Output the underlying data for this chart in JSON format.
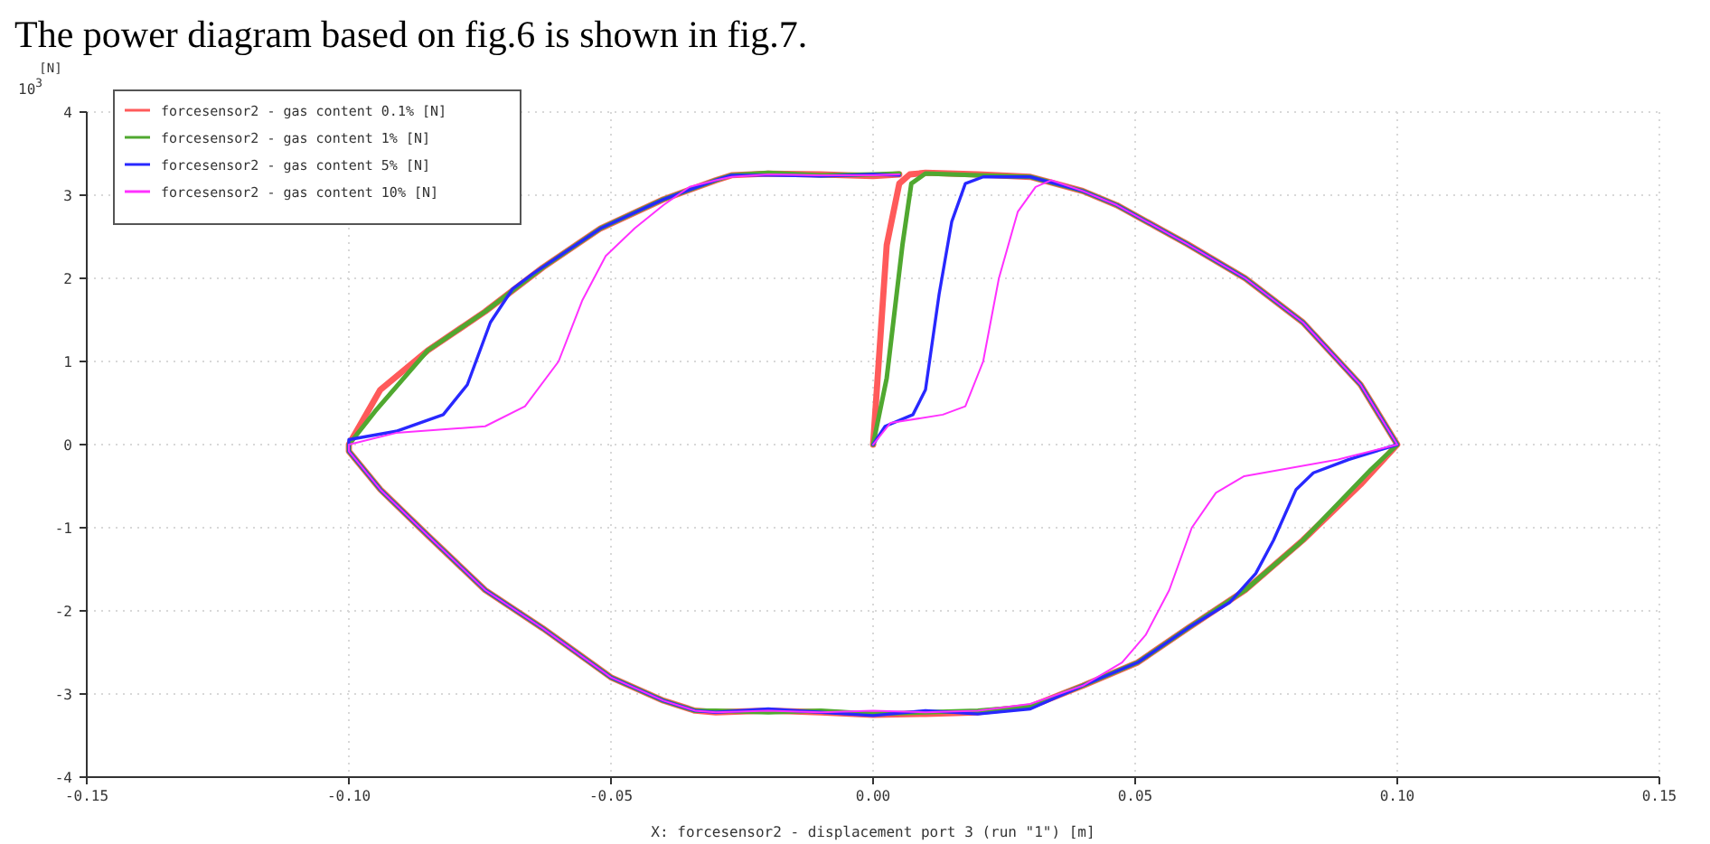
{
  "chart_data": {
    "type": "line",
    "title": "The power diagram based on fig.6 is shown in fig.7.",
    "xlabel": "X: forcesensor2 - displacement port 3 (run \"1\") [m]",
    "ylabel": "[N]",
    "annotations": [
      "10$^{3}$"
    ],
    "xlim": [
      -0.15,
      0.15
    ],
    "xticks": [
      {
        "value": -0.15,
        "label": "-0.15"
      },
      {
        "value": -0.1,
        "label": "-0.10"
      },
      {
        "value": -0.05,
        "label": "-0.05"
      },
      {
        "value": 0,
        "label": "0.00"
      },
      {
        "value": 0.05,
        "label": "0.05"
      },
      {
        "value": 0.1,
        "label": "0.10"
      },
      {
        "value": 0.15,
        "label": "0.15"
      }
    ],
    "ylim": [
      -4,
      4
    ],
    "yticks": [
      -4,
      -3,
      -2,
      -1,
      0,
      1,
      2,
      3,
      4
    ],
    "grid": true,
    "legend": "top left",
    "line_style": "solid",
    "marker": "none",
    "series": [
      {
        "name": "forcesensor2 - gas content 0.1% [N]",
        "color": "#ff5a5a",
        "x": [
          0,
          0.0026,
          0.005,
          0.007,
          0.01,
          0.02,
          0.03,
          0.04,
          0.0465,
          0.06,
          0.071,
          0.082,
          0.093,
          0.1,
          0.093,
          0.082,
          0.071,
          0.06,
          0.0505,
          0.04,
          0.03,
          0.02,
          0.01,
          0,
          -0.01,
          -0.02,
          -0.03,
          -0.034,
          -0.04,
          -0.05,
          -0.063,
          -0.074,
          -0.085,
          -0.094,
          -0.1,
          -0.1,
          -0.094,
          -0.085,
          -0.074,
          -0.063,
          -0.052,
          -0.04,
          -0.03,
          -0.027,
          -0.02,
          -0.01,
          0,
          0.005
        ],
        "values": [
          0,
          2.4,
          3.14,
          3.25,
          3.27,
          3.25,
          3.22,
          3.05,
          2.88,
          2.41,
          2.0,
          1.47,
          0.72,
          0,
          -0.48,
          -1.15,
          -1.75,
          -2.21,
          -2.62,
          -2.9,
          -3.15,
          -3.22,
          -3.24,
          -3.25,
          -3.22,
          -3.2,
          -3.22,
          -3.2,
          -3.08,
          -2.8,
          -2.21,
          -1.75,
          -1.09,
          -0.54,
          -0.08,
          0,
          0.66,
          1.13,
          1.6,
          2.13,
          2.6,
          2.95,
          3.18,
          3.24,
          3.26,
          3.25,
          3.23,
          3.25
        ]
      },
      {
        "name": "forcesensor2 - gas content 1% [N]",
        "color": "#50a830",
        "x": [
          0,
          0.0026,
          0.0056,
          0.0073,
          0.01,
          0.02,
          0.03,
          0.04,
          0.0465,
          0.06,
          0.071,
          0.082,
          0.093,
          0.1,
          0.095,
          0.082,
          0.071,
          0.06,
          0.0505,
          0.04,
          0.03,
          0.02,
          0.01,
          0,
          -0.01,
          -0.02,
          -0.03,
          -0.034,
          -0.04,
          -0.05,
          -0.063,
          -0.074,
          -0.085,
          -0.094,
          -0.1,
          -0.1,
          -0.095,
          -0.085,
          -0.074,
          -0.063,
          -0.052,
          -0.04,
          -0.03,
          -0.027,
          -0.02,
          -0.01,
          0,
          0.005
        ],
        "values": [
          0,
          0.8,
          2.4,
          3.14,
          3.26,
          3.24,
          3.22,
          3.05,
          2.88,
          2.41,
          2.0,
          1.47,
          0.72,
          0,
          -0.3,
          -1.15,
          -1.75,
          -2.21,
          -2.62,
          -2.9,
          -3.15,
          -3.2,
          -3.22,
          -3.24,
          -3.2,
          -3.22,
          -3.2,
          -3.2,
          -3.08,
          -2.8,
          -2.21,
          -1.75,
          -1.09,
          -0.54,
          -0.08,
          0,
          0.4,
          1.13,
          1.6,
          2.13,
          2.6,
          2.95,
          3.18,
          3.24,
          3.27,
          3.24,
          3.25,
          3.26
        ]
      },
      {
        "name": "forcesensor2 - gas content 5% [N]",
        "color": "#2828ff",
        "x": [
          0,
          0.0023,
          0.0076,
          0.01,
          0.0126,
          0.015,
          0.0176,
          0.021,
          0.03,
          0.04,
          0.0465,
          0.06,
          0.071,
          0.082,
          0.093,
          0.1,
          0.0907,
          0.084,
          0.0807,
          0.0764,
          0.073,
          0.068,
          0.06,
          0.0505,
          0.04,
          0.03,
          0.02,
          0.01,
          0,
          -0.01,
          -0.02,
          -0.03,
          -0.034,
          -0.04,
          -0.05,
          -0.063,
          -0.074,
          -0.085,
          -0.094,
          -0.1,
          -0.1,
          -0.091,
          -0.082,
          -0.0774,
          -0.073,
          -0.0688,
          -0.065,
          -0.052,
          -0.04,
          -0.03,
          -0.027,
          -0.02,
          -0.01,
          0,
          0.005
        ],
        "values": [
          0,
          0.22,
          0.36,
          0.66,
          1.81,
          2.68,
          3.14,
          3.22,
          3.22,
          3.05,
          2.88,
          2.41,
          2.0,
          1.47,
          0.72,
          0,
          -0.18,
          -0.34,
          -0.54,
          -1.15,
          -1.55,
          -1.9,
          -2.21,
          -2.62,
          -2.9,
          -3.18,
          -3.24,
          -3.2,
          -3.26,
          -3.22,
          -3.18,
          -3.22,
          -3.2,
          -3.08,
          -2.8,
          -2.21,
          -1.75,
          -1.09,
          -0.54,
          -0.08,
          0.06,
          0.16,
          0.36,
          0.72,
          1.47,
          1.87,
          2.05,
          2.6,
          2.95,
          3.18,
          3.24,
          3.24,
          3.23,
          3.25,
          3.24
        ]
      },
      {
        "name": "forcesensor2 - gas content 10% [N]",
        "color": "#ff30ff",
        "x": [
          0,
          0.0033,
          0.0133,
          0.0176,
          0.021,
          0.024,
          0.0276,
          0.031,
          0.034,
          0.04,
          0.0465,
          0.06,
          0.071,
          0.082,
          0.093,
          0.1,
          0.0887,
          0.0708,
          0.0654,
          0.0608,
          0.0565,
          0.052,
          0.0475,
          0.04,
          0.03,
          0.02,
          0.01,
          0,
          -0.01,
          -0.02,
          -0.03,
          -0.034,
          -0.04,
          -0.05,
          -0.063,
          -0.074,
          -0.085,
          -0.094,
          -0.1,
          -0.1,
          -0.091,
          -0.074,
          -0.0664,
          -0.06,
          -0.0555,
          -0.051,
          -0.0455,
          -0.04,
          -0.035,
          -0.03,
          -0.027,
          -0.02,
          -0.01,
          0,
          0.005
        ],
        "values": [
          0,
          0.26,
          0.36,
          0.46,
          1.0,
          2.0,
          2.8,
          3.1,
          3.18,
          3.05,
          2.88,
          2.41,
          2.0,
          1.47,
          0.72,
          0,
          -0.18,
          -0.38,
          -0.58,
          -1.0,
          -1.75,
          -2.29,
          -2.62,
          -2.9,
          -3.12,
          -3.2,
          -3.22,
          -3.2,
          -3.22,
          -3.2,
          -3.22,
          -3.2,
          -3.08,
          -2.8,
          -2.21,
          -1.75,
          -1.09,
          -0.54,
          -0.08,
          0,
          0.14,
          0.22,
          0.46,
          1.0,
          1.73,
          2.27,
          2.6,
          2.88,
          3.1,
          3.18,
          3.22,
          3.25,
          3.24,
          3.24,
          3.25
        ]
      }
    ]
  }
}
